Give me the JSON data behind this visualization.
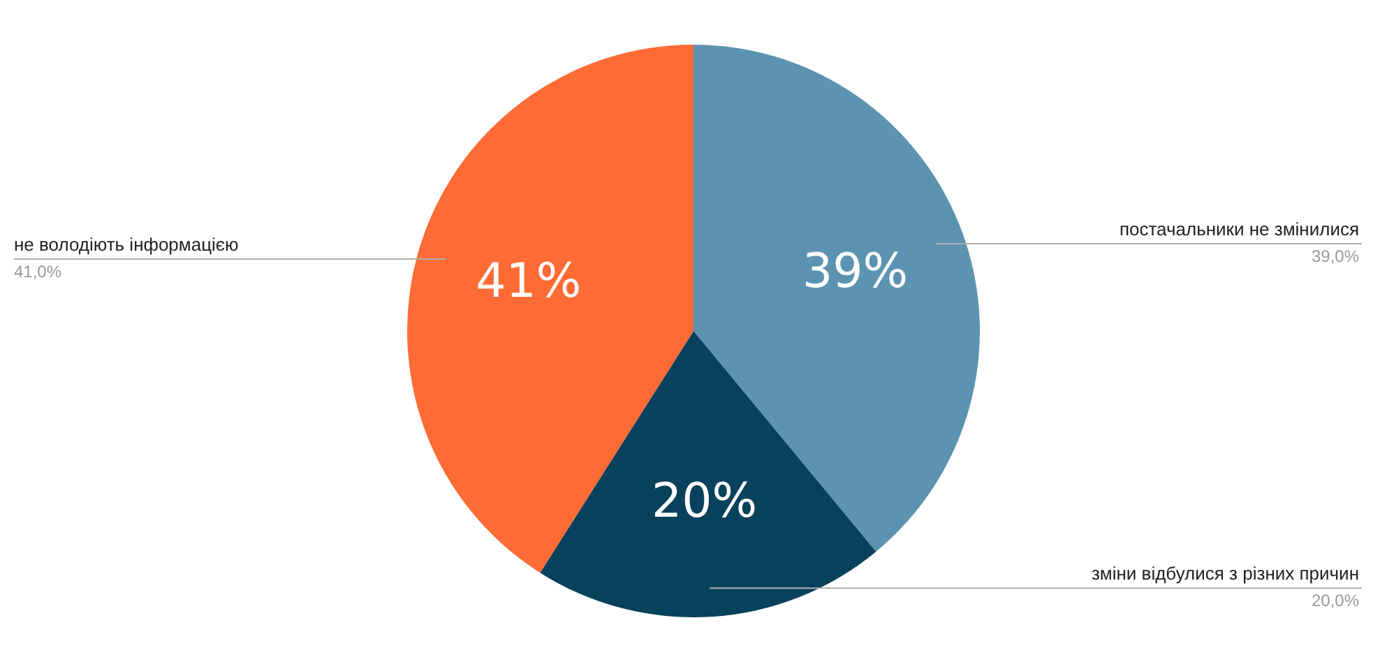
{
  "chart_data": {
    "type": "pie",
    "categories": [
      "постачальники не змінилися",
      "зміни відбулися з різних причин",
      "не володіють інформацією"
    ],
    "values": [
      39,
      20,
      41
    ],
    "colors": [
      "#5b93b0",
      "#08415c",
      "#ff6b35"
    ],
    "value_labels": [
      "39%",
      "20%",
      "41%"
    ],
    "annotations": [
      {
        "text": "39,0%",
        "x": "постачальники не змінилися"
      },
      {
        "text": "20,0%",
        "x": "зміни відбулися з різних причин"
      },
      {
        "text": "41,0%",
        "x": "не володіють інформацією"
      }
    ]
  }
}
